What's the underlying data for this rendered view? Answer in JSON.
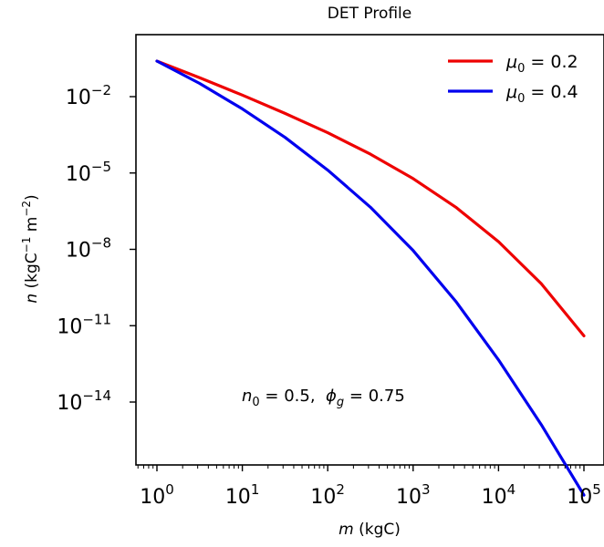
{
  "chart_data": {
    "type": "line",
    "title": "DET Profile",
    "xlabel": {
      "italic": "m",
      "rest": " (kgC)"
    },
    "ylabel": {
      "italic": "n",
      "rest": " (kgC",
      "sup1": "−1",
      "mid": " m",
      "sup2": "−2",
      "end": ")"
    },
    "xscale": "log",
    "yscale": "log",
    "xlim": [
      0.6,
      130000
    ],
    "ylim": [
      1e-17,
      2.5
    ],
    "x_ticks": [
      {
        "value": 1,
        "base": "10",
        "exp": "0"
      },
      {
        "value": 10,
        "base": "10",
        "exp": "1"
      },
      {
        "value": 100,
        "base": "10",
        "exp": "2"
      },
      {
        "value": 1000,
        "base": "10",
        "exp": "3"
      },
      {
        "value": 10000,
        "base": "10",
        "exp": "4"
      },
      {
        "value": 100000,
        "base": "10",
        "exp": "5"
      }
    ],
    "y_ticks": [
      {
        "value": 0.01,
        "base": "10",
        "exp": "−2"
      },
      {
        "value": 1e-05,
        "base": "10",
        "exp": "−5"
      },
      {
        "value": 1e-08,
        "base": "10",
        "exp": "−8"
      },
      {
        "value": 1e-11,
        "base": "10",
        "exp": "−11"
      },
      {
        "value": 1e-14,
        "base": "10",
        "exp": "−14"
      }
    ],
    "grid": false,
    "legend_position": "top-right",
    "series": [
      {
        "name": {
          "sym": "μ",
          "sub": "0",
          "rest": " = 0.2"
        },
        "color": "#ee0000",
        "x": [
          1,
          3.16,
          10,
          31.6,
          100,
          316,
          1000,
          3162,
          10000,
          31623,
          100000
        ],
        "y": [
          0.25,
          0.055,
          0.0115,
          0.0022,
          0.00038,
          5.5e-05,
          6e-06,
          4.5e-07,
          2e-08,
          4.5e-10,
          4e-12
        ]
      },
      {
        "name": {
          "sym": "μ",
          "sub": "0",
          "rest": " = 0.4"
        },
        "color": "#0000ee",
        "x": [
          1,
          3.16,
          10,
          31.6,
          100,
          316,
          1000,
          3162,
          10000,
          31623,
          100000
        ],
        "y": [
          0.25,
          0.033,
          0.0033,
          0.00025,
          1.3e-05,
          4.5e-07,
          9e-09,
          9e-11,
          4.5e-13,
          1.3e-15,
          2.2e-18
        ]
      }
    ],
    "annotation": {
      "n_sym": "n",
      "n_sub": "0",
      "n_rest": " = 0.5,  ",
      "phi_sym": "ϕ",
      "phi_sub": "g",
      "phi_rest": " = 0.75"
    }
  }
}
